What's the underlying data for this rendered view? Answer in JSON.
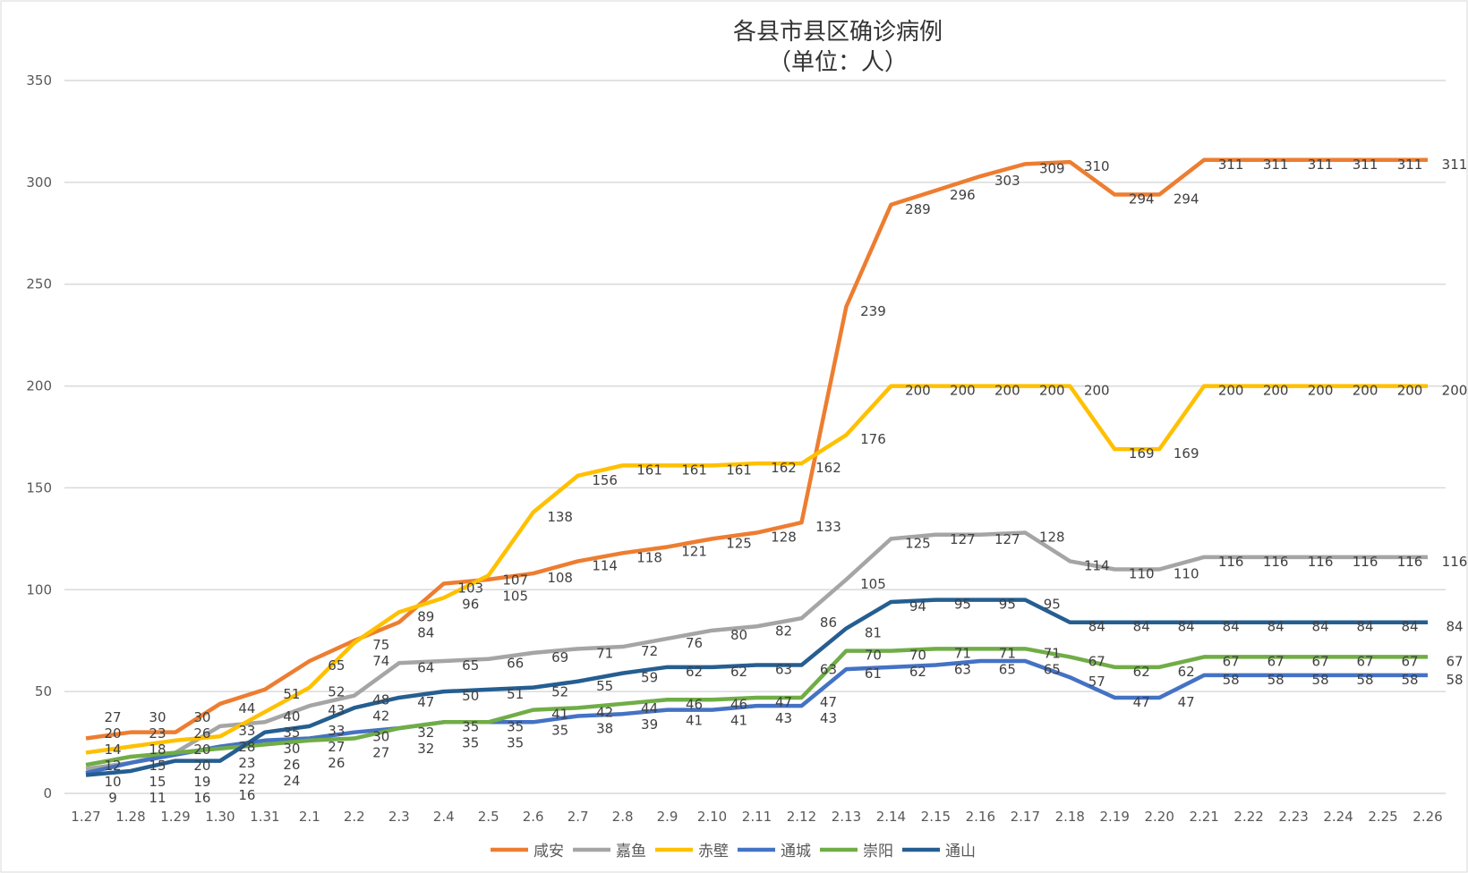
{
  "chart_data": {
    "type": "line",
    "title": "各县市县区确诊病例",
    "subtitle": "（单位：人）",
    "xlabel": "",
    "ylabel": "",
    "ylim": [
      0,
      350
    ],
    "yticks": [
      0,
      50,
      100,
      150,
      200,
      250,
      300,
      350
    ],
    "grid": true,
    "legend_position": "bottom",
    "categories": [
      "1.27",
      "1.28",
      "1.29",
      "1.30",
      "1.31",
      "2.1",
      "2.2",
      "2.3",
      "2.4",
      "2.5",
      "2.6",
      "2.7",
      "2.8",
      "2.9",
      "2.10",
      "2.11",
      "2.12",
      "2.13",
      "2.14",
      "2.15",
      "2.16",
      "2.17",
      "2.18",
      "2.19",
      "2.20",
      "2.21",
      "2.22",
      "2.23",
      "2.24",
      "2.25",
      "2.26"
    ],
    "series": [
      {
        "name": "咸安",
        "color": "#ED7D31",
        "values": [
          27,
          30,
          30,
          44,
          51,
          65,
          75,
          84,
          103,
          105,
          108,
          114,
          118,
          121,
          125,
          128,
          133,
          239,
          289,
          296,
          303,
          309,
          310,
          294,
          294,
          311,
          311,
          311,
          311,
          311,
          311
        ]
      },
      {
        "name": "嘉鱼",
        "color": "#A5A5A5",
        "values": [
          12,
          15,
          20,
          33,
          35,
          43,
          48,
          64,
          65,
          66,
          69,
          71,
          72,
          76,
          80,
          82,
          86,
          105,
          125,
          127,
          127,
          128,
          114,
          110,
          110,
          116,
          116,
          116,
          116,
          116,
          116
        ]
      },
      {
        "name": "赤壁",
        "color": "#FFC000",
        "values": [
          20,
          23,
          26,
          28,
          40,
          52,
          74,
          89,
          96,
          107,
          138,
          156,
          161,
          161,
          161,
          162,
          162,
          176,
          200,
          200,
          200,
          200,
          200,
          169,
          169,
          200,
          200,
          200,
          200,
          200,
          200
        ]
      },
      {
        "name": "通城",
        "color": "#4472C4",
        "values": [
          10,
          15,
          19,
          23,
          26,
          27,
          30,
          32,
          35,
          35,
          35,
          38,
          39,
          41,
          41,
          43,
          43,
          61,
          62,
          63,
          65,
          65,
          57,
          47,
          47,
          58,
          58,
          58,
          58,
          58,
          58
        ]
      },
      {
        "name": "崇阳",
        "color": "#70AD47",
        "values": [
          14,
          18,
          20,
          22,
          24,
          26,
          27,
          32,
          35,
          35,
          41,
          42,
          44,
          46,
          46,
          47,
          47,
          70,
          70,
          71,
          71,
          71,
          67,
          62,
          62,
          67,
          67,
          67,
          67,
          67,
          67
        ]
      },
      {
        "name": "通山",
        "color": "#255E91",
        "values": [
          9,
          11,
          16,
          16,
          30,
          33,
          42,
          47,
          50,
          51,
          52,
          55,
          59,
          62,
          62,
          63,
          63,
          81,
          94,
          95,
          95,
          95,
          84,
          84,
          84,
          84,
          84,
          84,
          84,
          84,
          84
        ]
      }
    ]
  }
}
